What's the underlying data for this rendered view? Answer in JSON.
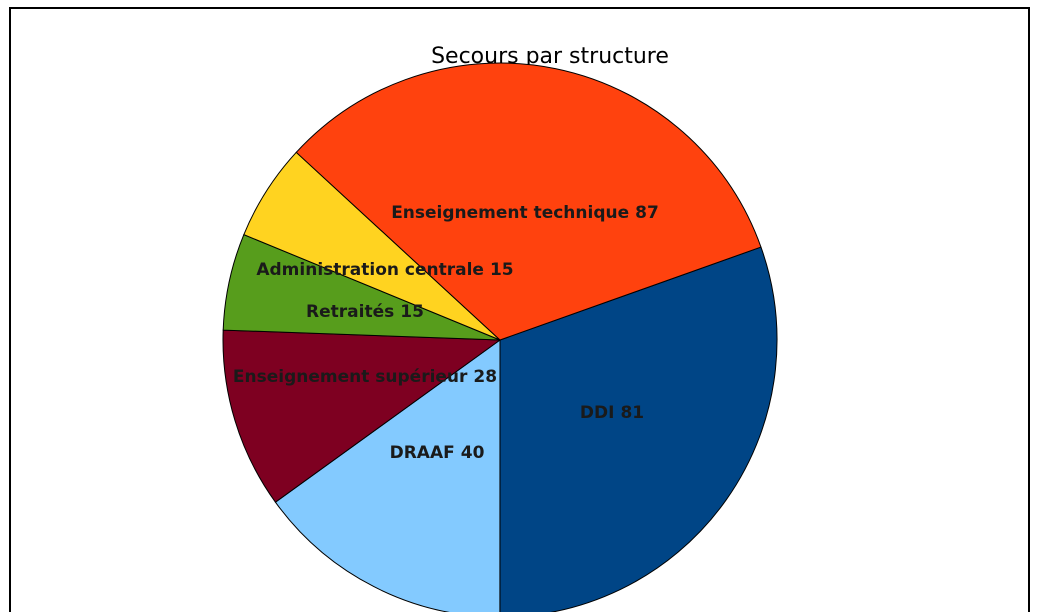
{
  "chart_data": {
    "type": "pie",
    "title": "Secours par structure",
    "categories": [
      "DDI",
      "DRAAF",
      "Enseignement supérieur",
      "Retraités",
      "Administration centrale",
      "Enseignement technique"
    ],
    "values": [
      81,
      40,
      28,
      15,
      15,
      87
    ],
    "colors": [
      "#004586",
      "#83caff",
      "#7e0021",
      "#579d1c",
      "#ffd320",
      "#ff420e"
    ]
  }
}
